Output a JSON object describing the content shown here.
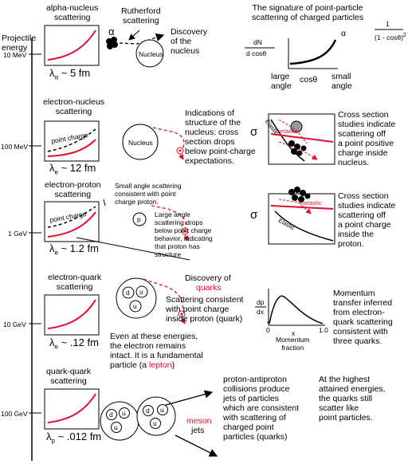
{
  "axis": {
    "title": "Projectile\nenergy",
    "ticks": [
      "10 MeV",
      "100 MeV",
      "1 GeV",
      "10 GeV",
      "100 GeV"
    ]
  },
  "rows": [
    {
      "title": "alpha-nucleus\nscattering",
      "lambda": "λ",
      "lambda_sub": "α",
      "lambda_val": "~ 5 fm"
    },
    {
      "title": "electron-nucleus\nscattering",
      "lambda": "λ",
      "lambda_sub": "e",
      "lambda_val": "~ 12 fm",
      "curve_label": "point charge"
    },
    {
      "title": "electron-proton\nscattering",
      "lambda": "λ",
      "lambda_sub": "e",
      "lambda_val": "~ 1.2 fm",
      "curve_label": "point charge"
    },
    {
      "title": "electron-quark\nscattering",
      "lambda": "λ",
      "lambda_sub": "e",
      "lambda_val": "~ .12 fm"
    },
    {
      "title": "quark-quark\nscattering",
      "lambda": "λ",
      "lambda_sub": "p",
      "lambda_val": "~ .012 fm"
    }
  ],
  "row1": {
    "alpha": "α",
    "rutherford": "Rutherford\nscattering",
    "nucleus": "Nucleus",
    "discovery": "Discovery\nof the\nnucleus",
    "signature_title": "The signature of point-particle\nscattering of charged particles",
    "dn": "dN",
    "dcos": "d cosθ",
    "alpha_prop": "α",
    "frac_num": "1",
    "frac_den": "(1 - cosθ)",
    "frac_exp": "2",
    "large_angle": "large\nangle",
    "costheta": "cosθ",
    "small_angle": "small\nangle"
  },
  "row2": {
    "nucleus": "Nucleus",
    "indications": "Indications of\nstructure of the\nnucleus: cross\nsection drops\nbelow point-charge\nexpectations.",
    "sigma": "σ",
    "elastic": "Elastic",
    "inelastic": "Inelastic",
    "cross": "Cross section\nstudies indicate\nscattering off\na point positive\ncharge inside\nnucleus."
  },
  "row3": {
    "small_angle": "Small angle scattering\nconsistent with point\ncharge proton.",
    "p": "p",
    "large_angle": "Large angle\nscattering drops\nbelow point charge\nbehavior, indicating\nthat proton has\nstructure",
    "sigma": "σ",
    "inelastic": "Inelastic",
    "elastic": "Elastic",
    "cross": "Cross section\nstudies indicate\nscattering off\na point charge\ninside the\nproton."
  },
  "row4": {
    "quarks_d": "d",
    "quarks_u1": "u",
    "quarks_u2": "u",
    "discovery_pre": "Discovery of",
    "quarks_word": "quarks",
    "scattering": "Scattering consistent\nwith point charge\ninside proton (quark)",
    "even_pre": "Even at these energies,\nthe electron remains\nintact. It is a fundamental\nparticle (a ",
    "lepton": "lepton",
    "even_post": ")",
    "dp": "dp",
    "dx": "dx",
    "x0": "0",
    "x1": "1.0",
    "xlab": "x",
    "mom_frac": "Momentum\nfraction",
    "momentum": "Momentum\ntransfer inferred\nfrom electron-\nquark scattering\nconsistent with\nthree quarks."
  },
  "row5": {
    "q_d1": "d",
    "q_u1": "u",
    "q_u2": "u",
    "q_d2": "d",
    "q_u3": "u",
    "q_u4": "u",
    "meson": "meson",
    "jets": "jets",
    "proton": "proton-antiproton\ncollisions produce\njets of particles\nwhich are consistent\nwith scattering of\ncharged point\nparticles (quarks)",
    "highest": "At the highest\nattained energies,\nthe quarks still\nscatter like\npoint particles."
  },
  "colors": {
    "accent": "#e0102f",
    "ink": "#000000"
  }
}
